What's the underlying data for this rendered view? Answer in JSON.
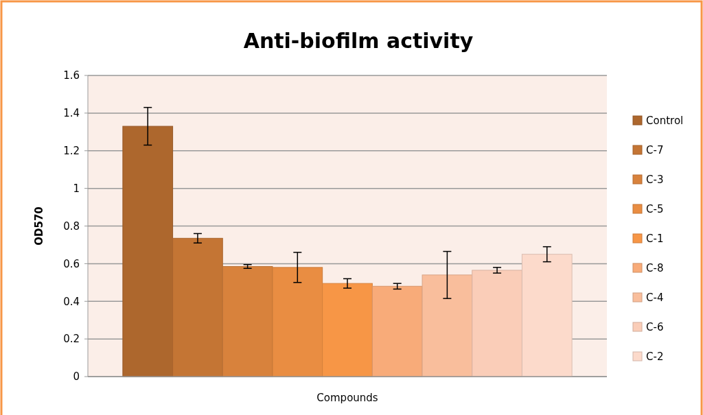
{
  "chart_data": {
    "type": "bar",
    "title": "Anti-biofilm activity",
    "xlabel": "Compounds",
    "ylabel": "OD570",
    "categories": [
      null
    ],
    "ylim": [
      0,
      1.6
    ],
    "yticks": [
      0,
      0.2,
      0.4,
      0.6,
      0.8,
      1,
      1.2,
      1.4,
      1.6
    ],
    "grid": "y",
    "legend": "right",
    "series": [
      {
        "name": "Control",
        "color": "#ad672d",
        "values": [
          1.33
        ],
        "errors": [
          0.1
        ]
      },
      {
        "name": "C-7",
        "color": "#c47534",
        "values": [
          0.735
        ],
        "errors": [
          0.025
        ]
      },
      {
        "name": "C-3",
        "color": "#d8823c",
        "values": [
          0.585
        ],
        "errors": [
          0.01
        ]
      },
      {
        "name": "C-5",
        "color": "#e98d42",
        "values": [
          0.58
        ],
        "errors": [
          0.08
        ]
      },
      {
        "name": "C-1",
        "color": "#f79646",
        "values": [
          0.495
        ],
        "errors": [
          0.025
        ]
      },
      {
        "name": "C-8",
        "color": "#f8ab79",
        "values": [
          0.48
        ],
        "errors": [
          0.015
        ]
      },
      {
        "name": "C-4",
        "color": "#f9be9c",
        "values": [
          0.54
        ],
        "errors": [
          0.125
        ]
      },
      {
        "name": "C-6",
        "color": "#facdb8",
        "values": [
          0.565
        ],
        "errors": [
          0.015
        ]
      },
      {
        "name": "C-2",
        "color": "#fcdacb",
        "values": [
          0.65
        ],
        "errors": [
          0.04
        ]
      }
    ]
  }
}
